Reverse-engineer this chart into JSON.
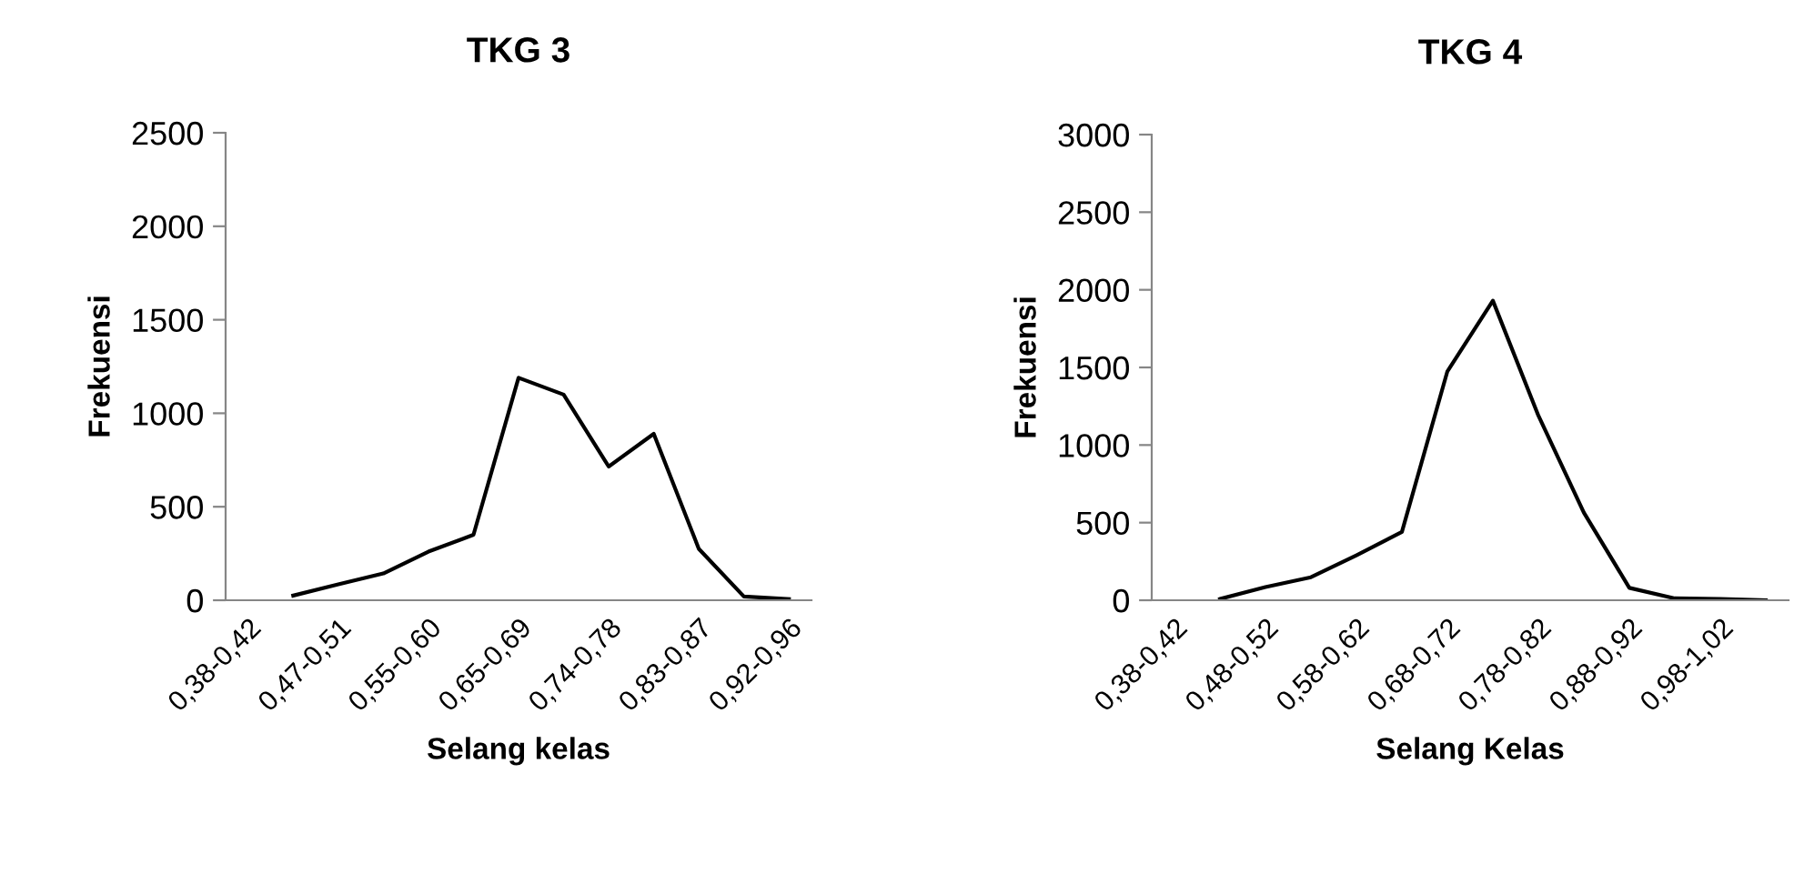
{
  "chart_data": [
    {
      "type": "line",
      "title": "TKG 3",
      "xlabel": "Selang kelas",
      "ylabel": "Frekuensi",
      "categories": [
        "0,38-0,42",
        null,
        "0,47-0,51",
        null,
        "0,55-0,60",
        null,
        "0,65-0,69",
        null,
        "0,74-0,78",
        null,
        "0,83-0,87",
        null,
        "0,92-0,96"
      ],
      "series": [
        {
          "color": "#000000",
          "values": [
            null,
            25,
            85,
            143,
            260,
            350,
            1190,
            1100,
            715,
            890,
            275,
            20,
            6
          ]
        }
      ],
      "ylim": [
        0,
        2500
      ],
      "yticks": [
        0,
        500,
        1000,
        1500,
        2000,
        2500
      ],
      "grid": false,
      "legend": false
    },
    {
      "type": "line",
      "title": "TKG 4",
      "xlabel": "Selang Kelas",
      "ylabel": "Frekuensi",
      "categories": [
        "0,38-0,42",
        null,
        "0,48-0,52",
        null,
        "0,58-0,62",
        null,
        "0,68-0,72",
        null,
        "0,78-0,82",
        null,
        "0,88-0,92",
        null,
        "0,98-1,02",
        null
      ],
      "series": [
        {
          "color": "#000000",
          "values": [
            null,
            8,
            85,
            148,
            290,
            440,
            1475,
            1930,
            1190,
            565,
            80,
            12,
            8,
            0
          ]
        }
      ],
      "ylim": [
        0,
        3000
      ],
      "yticks": [
        0,
        500,
        1000,
        1500,
        2000,
        2500,
        3000
      ],
      "grid": false,
      "legend": false
    }
  ]
}
